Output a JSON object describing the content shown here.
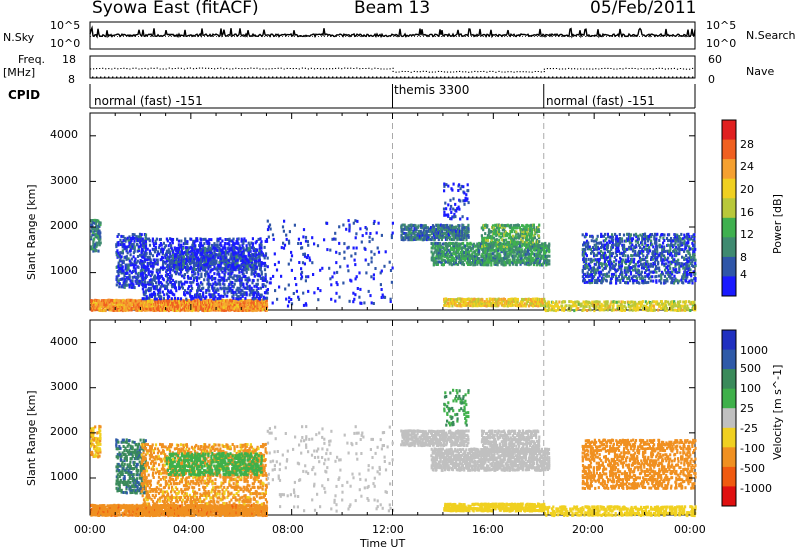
{
  "header": {
    "title_left": "Syowa East (fitACF)",
    "title_center": "Beam 13",
    "title_right": "05/Feb/2011"
  },
  "top_panels": {
    "nsky_label": "N.Sky",
    "nsearch_label": "N.Search",
    "nsky_top_tick": "10^5",
    "nsky_bottom_tick": "10^0",
    "nsearch_top_tick": "10^5",
    "nsearch_bottom_tick": "10^0",
    "freq_label": "Freq.",
    "freq_unit": "[MHz]",
    "freq_top_tick": "18",
    "freq_bottom_tick": "8",
    "nave_label": "Nave",
    "nave_top_tick": "60",
    "nave_bottom_tick": "0",
    "cpid_label": "CPID",
    "cpid_segments": [
      {
        "label": "normal (fast) -151",
        "start_hour": 0,
        "end_hour": 12
      },
      {
        "label": "themis 3300",
        "start_hour": 12,
        "end_hour": 18
      },
      {
        "label": "normal (fast) -151",
        "start_hour": 18,
        "end_hour": 24
      }
    ]
  },
  "x_axis": {
    "label": "Time UT",
    "ticks": [
      "00:00",
      "04:00",
      "08:00",
      "12:00",
      "16:00",
      "20:00",
      "00:00"
    ]
  },
  "power_panel": {
    "ylabel": "Slant Range [km]",
    "yticks": [
      "1000",
      "2000",
      "3000",
      "4000"
    ],
    "colorbar_label": "Power [dB]",
    "colorbar_ticks": [
      "4",
      "8",
      "12",
      "16",
      "20",
      "24",
      "28"
    ],
    "colorbar_colors": [
      "#1a1aff",
      "#2f56a8",
      "#3f8a70",
      "#3fb04f",
      "#b8c83a",
      "#f0d020",
      "#f5a030",
      "#f06020",
      "#e02020"
    ]
  },
  "velocity_panel": {
    "ylabel": "Slant Range [km]",
    "yticks": [
      "1000",
      "2000",
      "3000",
      "4000"
    ],
    "colorbar_label": "Velocity [m s^-1]",
    "colorbar_ticks": [
      "1000",
      "500",
      "100",
      "25",
      "-25",
      "-100",
      "-500",
      "-1000"
    ],
    "colorbar_colors": [
      "#2030c0",
      "#2f5aa8",
      "#3a8a5a",
      "#3fb04a",
      "#c0c0c0",
      "#f0d020",
      "#f09020",
      "#f05a10",
      "#e01010"
    ]
  },
  "chart_data": {
    "type": "heatmap",
    "title": "Syowa East (fitACF)",
    "x_range_hours": [
      0,
      24
    ],
    "y_range_km": [
      180,
      4500
    ],
    "xlabel": "Time UT",
    "ylabel": "Slant Range [km]",
    "freq_mhz": {
      "ylim": [
        8,
        18
      ],
      "segments": [
        [
          0,
          12,
          12.3
        ],
        [
          12,
          18,
          10.8
        ],
        [
          18,
          24,
          12.2
        ]
      ]
    },
    "scatter_regions": [
      {
        "t0": 0.0,
        "t1": 7.0,
        "r0": 200,
        "r1": 450,
        "power_db": 26,
        "vel": -350,
        "density": 0.85
      },
      {
        "t0": 0.0,
        "t1": 0.4,
        "r0": 1500,
        "r1": 2200,
        "power_db": 10,
        "vel": -100,
        "density": 0.5
      },
      {
        "t0": 1.0,
        "t1": 2.2,
        "r0": 700,
        "r1": 1900,
        "power_db": 6,
        "vel": 400,
        "density": 0.35
      },
      {
        "t0": 2.0,
        "t1": 7.0,
        "r0": 450,
        "r1": 1800,
        "power_db": 5,
        "vel": -150,
        "density": 0.3
      },
      {
        "t0": 3.0,
        "t1": 6.8,
        "r0": 1100,
        "r1": 1600,
        "power_db": 6,
        "vel": 50,
        "density": 0.4
      },
      {
        "t0": 7.0,
        "t1": 12.0,
        "r0": 300,
        "r1": 2200,
        "power_db": 5,
        "vel": 0,
        "density": 0.04
      },
      {
        "t0": 12.3,
        "t1": 15.0,
        "r0": 1750,
        "r1": 2100,
        "power_db": 9,
        "vel": 0,
        "density": 0.6
      },
      {
        "t0": 13.5,
        "t1": 18.2,
        "r0": 1200,
        "r1": 1700,
        "power_db": 12,
        "vel": 0,
        "density": 0.6
      },
      {
        "t0": 15.5,
        "t1": 17.8,
        "r0": 1600,
        "r1": 2100,
        "power_db": 14,
        "vel": 0,
        "density": 0.5
      },
      {
        "t0": 14.0,
        "t1": 15.0,
        "r0": 2200,
        "r1": 3000,
        "power_db": 5,
        "vel": 100,
        "density": 0.15
      },
      {
        "t0": 14.0,
        "t1": 18.0,
        "r0": 300,
        "r1": 480,
        "power_db": 22,
        "vel": -60,
        "density": 0.7
      },
      {
        "t0": 18.0,
        "t1": 24.0,
        "r0": 200,
        "r1": 420,
        "power_db": 20,
        "vel": -50,
        "density": 0.45
      },
      {
        "t0": 19.5,
        "t1": 24.0,
        "r0": 800,
        "r1": 1900,
        "power_db": 7,
        "vel": -200,
        "density": 0.35
      }
    ]
  }
}
